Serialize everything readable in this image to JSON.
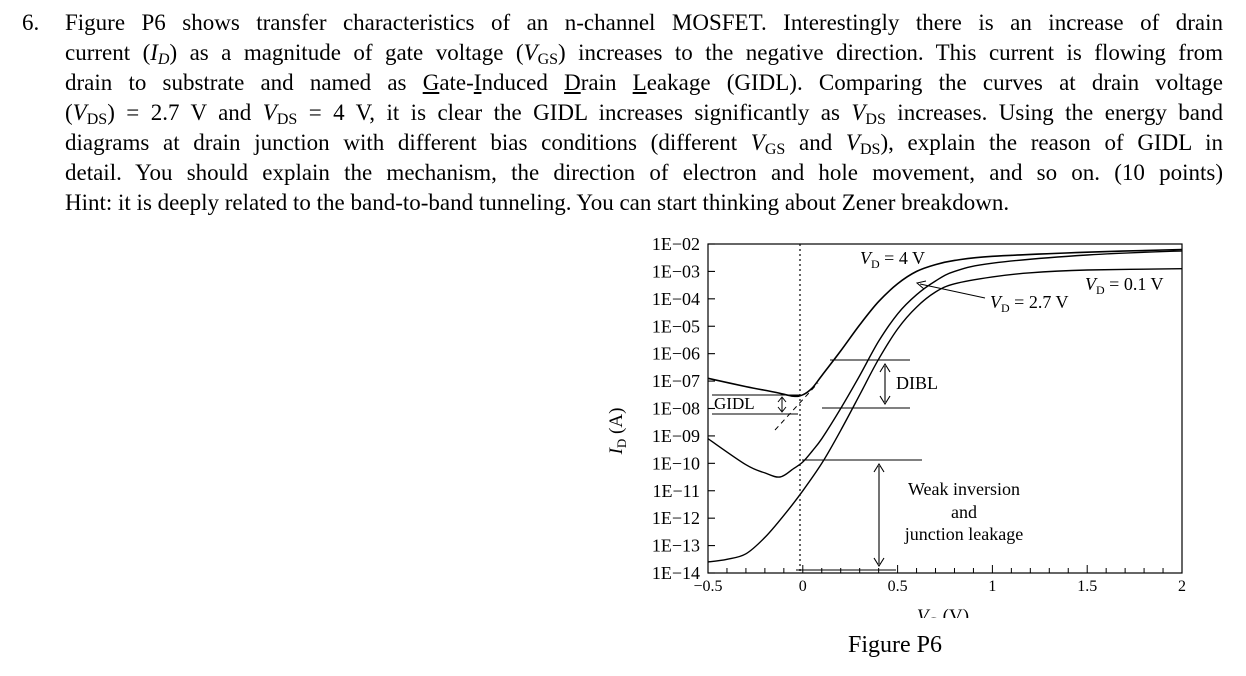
{
  "question": {
    "number": "6.",
    "lines": [
      "Figure P6 shows transfer characteristics of an n-channel MOSFET. Interestingly there is an increase of drain",
      "current (I_D) as a magnitude of gate voltage (V_GS) increases to the negative direction. This current is flowing from",
      "drain to substrate and named as Gate-Induced Drain Leakage (GIDL). Comparing the curves at drain voltage",
      "(V_DS) = 2.7 V and V_DS = 4 V, it is clear the GIDL increases significantly as V_DS increases. Using the energy band",
      "diagrams at drain junction with different bias conditions (different V_GS and V_DS), explain the reason of GIDL in",
      "detail. You should explain the mechanism, the direction of electron and hole movement, and so on. (10 points)",
      "Hint: it is deeply related to the band-to-band tunneling. You can start thinking about Zener breakdown."
    ]
  },
  "figure": {
    "caption": "Figure P6",
    "ylabel": "I_D (A)",
    "xlabel": "V_G (V)",
    "ytick_labels": [
      "1E−02",
      "1E−03",
      "1E−04",
      "1E−05",
      "1E−06",
      "1E−07",
      "1E−08",
      "1E−09",
      "1E−10",
      "1E−11",
      "1E−12",
      "1E−13",
      "1E−14"
    ],
    "xtick_labels": [
      "−0.5",
      "0",
      "0.5",
      "1",
      "1.5",
      "2"
    ],
    "annotations": {
      "vd4": "V_D = 4 V",
      "vd27": "V_D = 2.7 V",
      "vd01": "V_D = 0.1 V",
      "dibl": "DIBL",
      "gidl": "GIDL",
      "weak1": "Weak inversion",
      "weak2": "and",
      "weak3": "junction leakage"
    }
  },
  "chart_data": {
    "type": "line",
    "title": "",
    "xlabel": "V_G (V)",
    "ylabel": "I_D (A)",
    "x_range": [
      -0.5,
      2.0
    ],
    "y_range_log10": [
      -14,
      -2
    ],
    "y_scale": "log",
    "series": [
      {
        "name": "V_D = 4 V",
        "x": [
          -0.5,
          -0.3,
          -0.15,
          -0.05,
          0.0,
          0.05,
          0.1,
          0.2,
          0.3,
          0.4,
          0.5,
          0.6,
          0.7,
          0.8,
          1.0,
          1.5,
          2.0
        ],
        "log10_y": [
          -6.9,
          -7.2,
          -7.4,
          -7.55,
          -7.5,
          -7.25,
          -6.8,
          -5.9,
          -4.95,
          -4.1,
          -3.45,
          -3.0,
          -2.75,
          -2.6,
          -2.45,
          -2.3,
          -2.2
        ]
      },
      {
        "name": "V_D = 2.7 V",
        "x": [
          -0.5,
          -0.3,
          -0.2,
          -0.12,
          -0.05,
          0.0,
          0.05,
          0.1,
          0.2,
          0.3,
          0.4,
          0.5,
          0.6,
          0.7,
          0.8,
          1.0,
          1.5,
          2.0
        ],
        "log10_y": [
          -9.1,
          -10.05,
          -10.35,
          -10.5,
          -10.2,
          -9.95,
          -9.55,
          -9.1,
          -8.0,
          -6.8,
          -5.55,
          -4.55,
          -3.85,
          -3.35,
          -3.0,
          -2.7,
          -2.4,
          -2.25
        ]
      },
      {
        "name": "V_D = 0.1 V",
        "x": [
          -0.5,
          -0.4,
          -0.3,
          -0.2,
          -0.1,
          0.0,
          0.1,
          0.2,
          0.3,
          0.4,
          0.5,
          0.6,
          0.7,
          0.8,
          1.0,
          1.2,
          1.5,
          2.0
        ],
        "log10_y": [
          -13.6,
          -13.5,
          -13.3,
          -12.7,
          -11.9,
          -11.0,
          -10.0,
          -8.8,
          -7.5,
          -6.2,
          -5.1,
          -4.3,
          -3.75,
          -3.45,
          -3.2,
          -3.05,
          -2.95,
          -2.9
        ]
      }
    ],
    "annotations": [
      "V_D = 4 V",
      "V_D = 2.7 V",
      "V_D = 0.1 V",
      "DIBL",
      "GIDL",
      "Weak inversion",
      "and",
      "junction leakage"
    ]
  }
}
